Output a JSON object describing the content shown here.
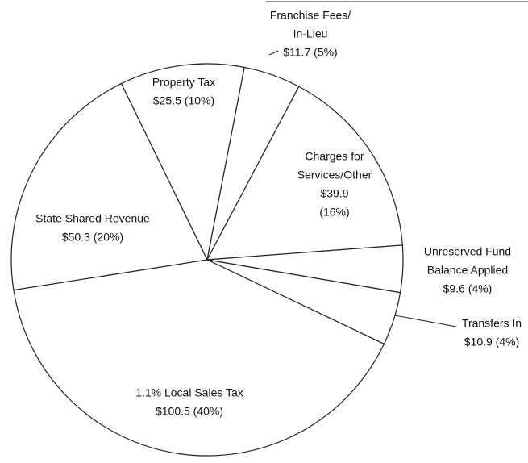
{
  "chart_data": {
    "type": "pie",
    "categories": [
      [
        "Property Tax"
      ],
      [
        "Franchise Fees/",
        "In-Lieu"
      ],
      [
        "Charges for",
        "Services/Other"
      ],
      [
        "Unreserved Fund",
        "Balance Applied"
      ],
      [
        "Transfers In"
      ],
      [
        "1.1% Local Sales Tax"
      ],
      [
        "State Shared Revenue"
      ]
    ],
    "values": [
      25.5,
      11.7,
      39.9,
      9.6,
      10.9,
      100.5,
      50.3
    ],
    "value_labels": [
      [
        "$25.5 (10%)"
      ],
      [
        "$11.7 (5%)"
      ],
      [
        "$39.9",
        "(16%)"
      ],
      [
        "$9.6 (4%)"
      ],
      [
        "$10.9 (4%)"
      ],
      [
        "$100.5 (40%)"
      ],
      [
        "$50.3 (20%)"
      ]
    ],
    "color": "#ffffff"
  }
}
